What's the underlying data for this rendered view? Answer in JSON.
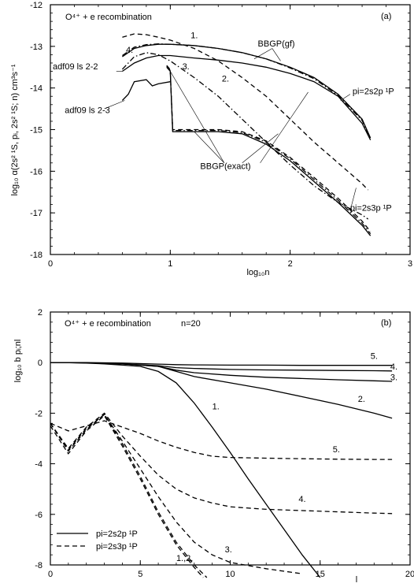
{
  "chart_data": [
    {
      "type": "line",
      "title": "O⁴⁺ + e recombination",
      "panel_label": "(a)",
      "xlabel": "log₁₀n",
      "ylabel": "log₁₀ α(2s² ¹S, pᵢ, 2s² ¹S; n) cm³s⁻¹",
      "xlim": [
        0,
        3
      ],
      "ylim": [
        -18,
        -12
      ],
      "x_ticks": [
        0,
        1,
        2,
        3
      ],
      "y_ticks": [
        -18,
        -17,
        -16,
        -15,
        -14,
        -13,
        -12
      ],
      "x_tick_labels": [
        "0",
        "1",
        "2",
        "3"
      ],
      "y_tick_labels": [
        "-18",
        "-17",
        "-16",
        "-15",
        "-14",
        "-13",
        "-12"
      ],
      "grid": false,
      "series": [
        {
          "style": "solid",
          "x": [
            0.6,
            0.7,
            0.8,
            0.9,
            1.0,
            1.2,
            1.4,
            1.6,
            1.8,
            2.0,
            2.2,
            2.4,
            2.6,
            2.67
          ],
          "y": [
            -13.6,
            -13.4,
            -13.28,
            -13.22,
            -13.22,
            -13.28,
            -13.33,
            -13.4,
            -13.5,
            -13.65,
            -13.85,
            -14.2,
            -14.85,
            -15.25
          ]
        },
        {
          "style": "solid",
          "x": [
            0.6,
            0.7,
            0.8,
            0.9,
            1.0,
            1.2,
            1.4,
            1.6,
            1.8,
            2.0,
            2.2,
            2.4,
            2.6,
            2.67
          ],
          "y": [
            -13.25,
            -13.05,
            -12.98,
            -12.95,
            -12.95,
            -12.98,
            -13.05,
            -13.15,
            -13.3,
            -13.5,
            -13.75,
            -14.15,
            -14.75,
            -15.2
          ]
        },
        {
          "style": "dashdot",
          "x": [
            0.6,
            0.7,
            0.8,
            0.9,
            1.0,
            1.2,
            1.4,
            1.6,
            1.8,
            2.0,
            2.2,
            2.4,
            2.6,
            2.67
          ],
          "y": [
            -13.22,
            -13.02,
            -12.96,
            -12.94,
            -12.95,
            -12.98,
            -13.05,
            -13.15,
            -13.3,
            -13.52,
            -13.78,
            -14.18,
            -14.78,
            -15.22
          ]
        },
        {
          "style": "dashed",
          "x": [
            0.6,
            0.7,
            0.8,
            0.9,
            1.0,
            1.2,
            1.4,
            1.6,
            1.8,
            2.0,
            2.2,
            2.4,
            2.6,
            2.65
          ],
          "y": [
            -12.78,
            -12.7,
            -12.72,
            -12.78,
            -12.85,
            -13.05,
            -13.35,
            -13.75,
            -14.2,
            -14.75,
            -15.3,
            -15.8,
            -16.3,
            -16.45
          ]
        },
        {
          "style": "dashdot",
          "x": [
            0.6,
            0.7,
            0.8,
            0.9,
            1.0,
            1.2,
            1.4,
            1.6,
            1.8,
            2.0,
            2.2,
            2.4,
            2.6,
            2.65
          ],
          "y": [
            -13.55,
            -13.25,
            -13.15,
            -13.2,
            -13.35,
            -13.75,
            -14.2,
            -14.75,
            -15.3,
            -15.85,
            -16.35,
            -16.75,
            -17.05,
            -17.15
          ]
        },
        {
          "style": "solid",
          "x": [
            0.6,
            0.65,
            0.7,
            0.8,
            0.85,
            0.9,
            1.0
          ],
          "y": [
            -14.3,
            -14.15,
            -13.85,
            -13.8,
            -13.95,
            -13.9,
            -13.85
          ]
        },
        {
          "style": "solid",
          "x": [
            0.97,
            1.0,
            1.02,
            1.1,
            1.2,
            1.4,
            1.6,
            1.8,
            2.0,
            2.2,
            2.4,
            2.6,
            2.67
          ],
          "y": [
            -13.5,
            -13.6,
            -15.05,
            -15.05,
            -15.05,
            -15.05,
            -15.1,
            -15.35,
            -15.75,
            -16.25,
            -16.75,
            -17.3,
            -17.55
          ]
        },
        {
          "style": "dashdot",
          "x": [
            0.97,
            1.0,
            1.02,
            1.1,
            1.2,
            1.4,
            1.6,
            1.8,
            2.0,
            2.2,
            2.4,
            2.6,
            2.67
          ],
          "y": [
            -13.48,
            -13.58,
            -15.02,
            -15.02,
            -15.02,
            -15.02,
            -15.07,
            -15.3,
            -15.7,
            -16.2,
            -16.7,
            -17.25,
            -17.5
          ]
        },
        {
          "style": "dashed",
          "x": [
            0.97,
            1.0,
            1.02,
            1.1,
            1.2,
            1.4,
            1.6,
            1.8,
            2.0,
            2.2,
            2.4,
            2.6,
            2.67
          ],
          "y": [
            -13.46,
            -13.56,
            -15.0,
            -15.0,
            -15.0,
            -15.0,
            -15.05,
            -15.27,
            -15.67,
            -16.15,
            -16.65,
            -17.2,
            -17.45
          ]
        }
      ],
      "annotations": [
        {
          "text": "1.",
          "x": 1.17,
          "y": -12.8
        },
        {
          "text": "2.",
          "x": 1.43,
          "y": -13.85
        },
        {
          "text": "3.",
          "x": 1.1,
          "y": -13.55
        },
        {
          "text": "4.",
          "x": 0.63,
          "y": -13.15
        },
        {
          "text": "adf09 ls 2-2",
          "x": 0.02,
          "y": -13.55
        },
        {
          "text": "adf09 ls 2-3",
          "x": 0.12,
          "y": -14.6
        },
        {
          "text": "BBGP(gf)",
          "x": 1.73,
          "y": -13.0
        },
        {
          "text": "BBGP(exact)",
          "x": 1.25,
          "y": -15.95
        },
        {
          "text": "pi=2s2p ¹P",
          "x": 2.52,
          "y": -14.15
        },
        {
          "text": "pi=2s3p ¹P",
          "x": 2.5,
          "y": -16.95
        }
      ]
    },
    {
      "type": "line",
      "title": "O⁴⁺ + e recombination",
      "subtitle": "n=20",
      "panel_label": "(b)",
      "xlabel": "l",
      "ylabel": "log₁₀ b pᵢ;nl",
      "xlim": [
        0,
        20
      ],
      "ylim": [
        -8,
        2
      ],
      "x_ticks": [
        0,
        5,
        10,
        15,
        20
      ],
      "y_ticks": [
        -8,
        -6,
        -4,
        -2,
        0,
        2
      ],
      "x_tick_labels": [
        "0",
        "5",
        "10",
        "15",
        "20"
      ],
      "y_tick_labels": [
        "-8",
        "-6",
        "-4",
        "-2",
        "0",
        "2"
      ],
      "grid": false,
      "legend": [
        {
          "label": "pi=2s2p ¹P",
          "style": "solid"
        },
        {
          "label": "pi=2s3p ¹P",
          "style": "dashed"
        }
      ],
      "legend_position": "bottom-left",
      "series": [
        {
          "style": "solid",
          "x": [
            0,
            1,
            2,
            3,
            4,
            5,
            6,
            7,
            8,
            9,
            10,
            11,
            12,
            13,
            14,
            15
          ],
          "y": [
            0,
            0,
            -0.02,
            -0.05,
            -0.1,
            -0.15,
            -0.35,
            -0.8,
            -1.6,
            -2.55,
            -3.55,
            -4.6,
            -5.6,
            -6.6,
            -7.6,
            -8.5
          ]
        },
        {
          "style": "solid",
          "x": [
            0,
            2,
            4,
            6,
            7,
            8,
            10,
            12,
            14,
            16,
            18,
            19
          ],
          "y": [
            0,
            -0.01,
            -0.05,
            -0.15,
            -0.35,
            -0.55,
            -0.8,
            -1.05,
            -1.35,
            -1.65,
            -2.0,
            -2.2
          ]
        },
        {
          "style": "solid",
          "x": [
            0,
            2,
            4,
            6,
            7,
            8,
            10,
            12,
            14,
            16,
            18,
            19
          ],
          "y": [
            0,
            -0.01,
            -0.05,
            -0.15,
            -0.3,
            -0.4,
            -0.5,
            -0.58,
            -0.63,
            -0.68,
            -0.72,
            -0.74
          ]
        },
        {
          "style": "solid",
          "x": [
            0,
            2,
            4,
            6,
            7,
            8,
            10,
            12,
            14,
            16,
            18,
            19
          ],
          "y": [
            0,
            -0.01,
            -0.05,
            -0.12,
            -0.2,
            -0.23,
            -0.27,
            -0.29,
            -0.3,
            -0.31,
            -0.32,
            -0.33
          ]
        },
        {
          "style": "solid",
          "x": [
            0,
            2,
            4,
            6,
            7,
            8,
            10,
            12,
            14,
            16,
            18,
            19
          ],
          "y": [
            0,
            0,
            -0.02,
            -0.06,
            -0.08,
            -0.09,
            -0.1,
            -0.1,
            -0.11,
            -0.11,
            -0.11,
            -0.11
          ]
        },
        {
          "style": "dashed",
          "x": [
            0,
            1,
            2,
            3,
            4,
            5,
            6,
            7,
            8,
            8.7
          ],
          "y": [
            -2.4,
            -3.5,
            -2.65,
            -2.05,
            -3.2,
            -4.5,
            -5.9,
            -7.1,
            -8.0,
            -8.5
          ]
        },
        {
          "style": "dashed",
          "x": [
            0,
            1,
            2,
            3,
            4,
            5,
            6,
            7,
            8,
            8.5
          ],
          "y": [
            -2.5,
            -3.6,
            -2.7,
            -2.1,
            -3.3,
            -4.6,
            -6.0,
            -7.2,
            -8.1,
            -8.5
          ]
        },
        {
          "style": "dashed",
          "x": [
            0,
            1,
            2,
            3,
            4,
            5,
            6,
            7,
            8,
            9,
            10,
            12,
            14
          ],
          "y": [
            -2.4,
            -3.45,
            -2.6,
            -2.05,
            -3.1,
            -4.2,
            -5.3,
            -6.3,
            -7.1,
            -7.6,
            -7.9,
            -8.15,
            -8.35
          ]
        },
        {
          "style": "dashed",
          "x": [
            0,
            1,
            2,
            3,
            4,
            5,
            6,
            7,
            8,
            9,
            10,
            12,
            14,
            16,
            18,
            19
          ],
          "y": [
            -2.4,
            -3.4,
            -2.55,
            -2.0,
            -2.9,
            -3.7,
            -4.45,
            -5.0,
            -5.35,
            -5.55,
            -5.7,
            -5.8,
            -5.85,
            -5.9,
            -5.95,
            -5.97
          ]
        },
        {
          "style": "dashed",
          "x": [
            0,
            1,
            2,
            3,
            4,
            5,
            6,
            7,
            8,
            9,
            10,
            12,
            14,
            16,
            18,
            19
          ],
          "y": [
            -2.4,
            -2.7,
            -2.5,
            -2.3,
            -2.55,
            -2.8,
            -3.1,
            -3.35,
            -3.55,
            -3.7,
            -3.75,
            -3.78,
            -3.8,
            -3.82,
            -3.83,
            -3.83
          ]
        }
      ],
      "annotations": [
        {
          "text": "1.",
          "x": 9.0,
          "y": -1.85
        },
        {
          "text": "2.",
          "x": 17.1,
          "y": -1.55
        },
        {
          "text": "3.",
          "x": 18.9,
          "y": -0.7
        },
        {
          "text": "4.",
          "x": 18.9,
          "y": -0.27
        },
        {
          "text": "5.",
          "x": 17.8,
          "y": 0.15
        },
        {
          "text": "5.",
          "x": 15.7,
          "y": -3.55
        },
        {
          "text": "4.",
          "x": 13.8,
          "y": -5.5
        },
        {
          "text": "3.",
          "x": 9.7,
          "y": -7.5
        },
        {
          "text": "1.,2.",
          "x": 7.0,
          "y": -7.85
        }
      ]
    }
  ]
}
